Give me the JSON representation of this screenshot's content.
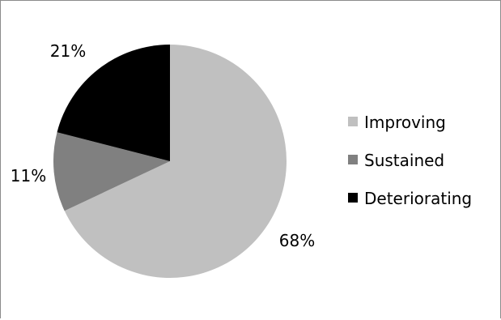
{
  "chart_data": {
    "type": "pie",
    "categories": [
      "Improving",
      "Sustained",
      "Deteriorating"
    ],
    "values": [
      68,
      11,
      21
    ],
    "value_labels": [
      "68%",
      "11%",
      "21%"
    ],
    "colors": [
      "#c0c0c0",
      "#808080",
      "#000000"
    ],
    "legend_position": "right",
    "start_angle_deg": 0,
    "direction": "clockwise"
  }
}
